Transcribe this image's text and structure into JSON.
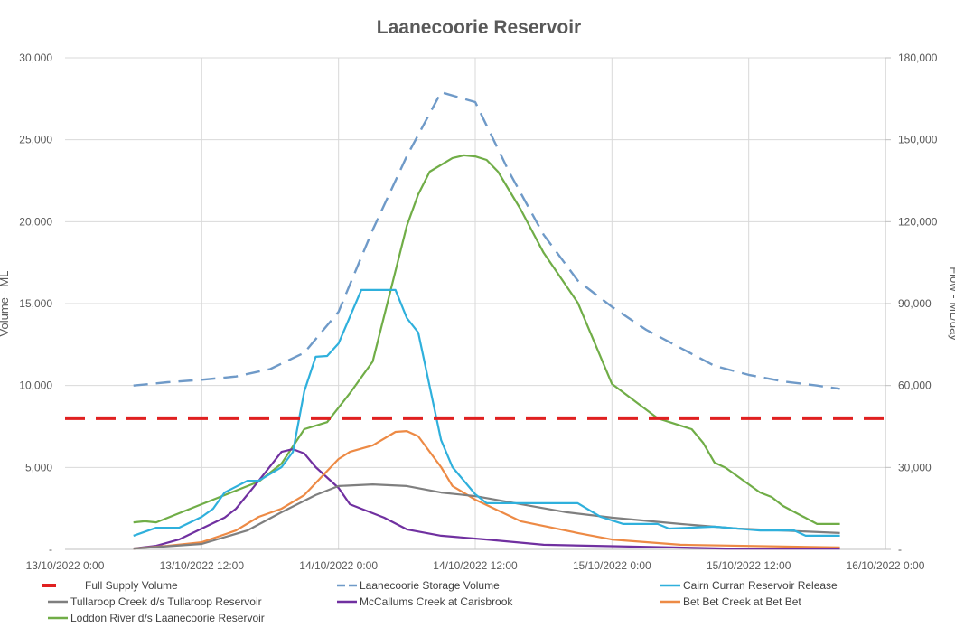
{
  "chart_data": {
    "type": "line",
    "title": "Laanecoorie Reservoir",
    "ylabel": "Volume - ML",
    "y2label": "Flow - ML/day",
    "ylim": [
      0,
      30000
    ],
    "y2lim": [
      0,
      180000
    ],
    "yticks": [
      "-",
      "5,000",
      "10,000",
      "15,000",
      "20,000",
      "25,000",
      "30,000"
    ],
    "y2ticks": [
      "-",
      "30,000",
      "60,000",
      "90,000",
      "120,000",
      "150,000",
      "180,000"
    ],
    "xlim": [
      "2022-10-13 00:00",
      "2022-10-16 00:00"
    ],
    "xticks": [
      "13/10/2022 0:00",
      "13/10/2022 12:00",
      "14/10/2022 0:00",
      "14/10/2022 12:00",
      "15/10/2022 0:00",
      "15/10/2022 12:00",
      "16/10/2022 0:00"
    ],
    "grid": true,
    "legend_position": "bottom",
    "series": [
      {
        "name": "Full Supply Volume",
        "axis": "left",
        "color": "#e02020",
        "dash": "long",
        "x": [
          "2022-10-13 00:00",
          "2022-10-16 00:00"
        ],
        "y": [
          8000,
          8000
        ]
      },
      {
        "name": "Laanecoorie Storage Volume",
        "axis": "left",
        "color": "#6f9ac8",
        "dash": "medium",
        "x": [
          "2022-10-13 06:00",
          "2022-10-13 09:00",
          "2022-10-13 12:00",
          "2022-10-13 15:00",
          "2022-10-13 18:00",
          "2022-10-13 21:00",
          "2022-10-14 00:00",
          "2022-10-14 03:00",
          "2022-10-14 06:00",
          "2022-10-14 09:00",
          "2022-10-14 12:00",
          "2022-10-14 15:00",
          "2022-10-14 18:00",
          "2022-10-14 21:00",
          "2022-10-15 00:00",
          "2022-10-15 03:00",
          "2022-10-15 06:00",
          "2022-10-15 09:00",
          "2022-10-15 12:00",
          "2022-10-15 15:00",
          "2022-10-15 18:00",
          "2022-10-15 20:00"
        ],
        "y": [
          10000,
          10200,
          10350,
          10550,
          11000,
          12000,
          14500,
          19500,
          24000,
          27900,
          27300,
          23000,
          19200,
          16400,
          14800,
          13400,
          12300,
          11200,
          10650,
          10250,
          10000,
          9800
        ]
      },
      {
        "name": "Cairn Curran Reservoir Release",
        "axis": "right",
        "color": "#2fb0dc",
        "dash": "none",
        "x": [
          "2022-10-13 06:00",
          "2022-10-13 08:00",
          "2022-10-13 10:00",
          "2022-10-13 12:00",
          "2022-10-13 13:00",
          "2022-10-13 14:00",
          "2022-10-13 16:00",
          "2022-10-13 17:00",
          "2022-10-13 19:00",
          "2022-10-13 20:00",
          "2022-10-13 21:00",
          "2022-10-13 22:00",
          "2022-10-13 23:00",
          "2022-10-14 00:00",
          "2022-10-14 02:00",
          "2022-10-14 05:00",
          "2022-10-14 06:00",
          "2022-10-14 07:00",
          "2022-10-14 09:00",
          "2022-10-14 10:00",
          "2022-10-14 12:00",
          "2022-10-14 13:00",
          "2022-10-14 21:00",
          "2022-10-14 23:00",
          "2022-10-15 01:00",
          "2022-10-15 04:00",
          "2022-10-15 05:00",
          "2022-10-15 09:00",
          "2022-10-15 13:00",
          "2022-10-15 16:00",
          "2022-10-15 17:00",
          "2022-10-15 20:00"
        ],
        "y": [
          5000,
          7900,
          7900,
          11900,
          14900,
          20800,
          25100,
          25100,
          30100,
          35700,
          57900,
          70500,
          70800,
          75400,
          95000,
          95000,
          84700,
          79400,
          40000,
          30100,
          20200,
          16900,
          16900,
          11900,
          9300,
          9300,
          7600,
          8300,
          6900,
          6900,
          5000,
          5000
        ]
      },
      {
        "name": "Tullaroop Creek d/s Tullaroop Reservoir",
        "axis": "right",
        "color": "#7f7f7f",
        "dash": "none",
        "x": [
          "2022-10-13 06:00",
          "2022-10-13 12:00",
          "2022-10-13 16:00",
          "2022-10-13 19:00",
          "2022-10-13 22:00",
          "2022-10-14 00:00",
          "2022-10-14 03:00",
          "2022-10-14 06:00",
          "2022-10-14 09:00",
          "2022-10-14 12:00",
          "2022-10-14 20:00",
          "2022-10-15 00:00",
          "2022-10-15 06:00",
          "2022-10-15 11:00",
          "2022-10-15 20:00"
        ],
        "y": [
          300,
          2000,
          6900,
          13600,
          19900,
          23200,
          23800,
          23200,
          20800,
          19500,
          13600,
          11600,
          9300,
          7600,
          6000
        ]
      },
      {
        "name": "McCallums Creek at Carisbrook",
        "axis": "right",
        "color": "#7030a0",
        "dash": "none",
        "x": [
          "2022-10-13 06:00",
          "2022-10-13 08:00",
          "2022-10-13 10:00",
          "2022-10-13 12:00",
          "2022-10-13 14:00",
          "2022-10-13 15:00",
          "2022-10-13 17:00",
          "2022-10-13 19:00",
          "2022-10-13 20:00",
          "2022-10-13 21:00",
          "2022-10-13 22:00",
          "2022-10-14 00:00",
          "2022-10-14 01:00",
          "2022-10-14 04:00",
          "2022-10-14 06:00",
          "2022-10-14 09:00",
          "2022-10-14 13:00",
          "2022-10-14 18:00",
          "2022-10-15 02:00",
          "2022-10-15 10:00",
          "2022-10-15 20:00"
        ],
        "y": [
          300,
          1300,
          3600,
          7600,
          11600,
          14900,
          25100,
          35700,
          36700,
          35100,
          30100,
          22500,
          16500,
          11600,
          7300,
          5000,
          3600,
          1700,
          1000,
          300,
          300
        ]
      },
      {
        "name": "Bet Bet Creek at Bet Bet",
        "axis": "right",
        "color": "#ed8a45",
        "dash": "none",
        "x": [
          "2022-10-13 06:00",
          "2022-10-13 09:00",
          "2022-10-13 12:00",
          "2022-10-13 15:00",
          "2022-10-13 17:00",
          "2022-10-13 19:00",
          "2022-10-13 21:00",
          "2022-10-14 00:00",
          "2022-10-14 01:00",
          "2022-10-14 03:00",
          "2022-10-14 05:00",
          "2022-10-14 06:00",
          "2022-10-14 07:00",
          "2022-10-14 09:00",
          "2022-10-14 10:00",
          "2022-10-14 12:00",
          "2022-10-14 16:00",
          "2022-10-14 21:00",
          "2022-10-15 00:00",
          "2022-10-15 06:00",
          "2022-10-15 20:00"
        ],
        "y": [
          300,
          1300,
          2600,
          6900,
          11900,
          14900,
          19900,
          33100,
          35700,
          38100,
          43000,
          43300,
          41400,
          30100,
          23200,
          18200,
          10300,
          6000,
          3600,
          1700,
          700
        ]
      },
      {
        "name": "Loddon River d/s Laanecoorie Reservoir",
        "axis": "right",
        "color": "#70ad47",
        "dash": "none",
        "x": [
          "2022-10-13 06:00",
          "2022-10-13 07:00",
          "2022-10-13 08:00",
          "2022-10-13 11:00",
          "2022-10-13 13:00",
          "2022-10-13 17:00",
          "2022-10-13 19:00",
          "2022-10-13 21:00",
          "2022-10-13 23:00",
          "2022-10-14 01:00",
          "2022-10-14 03:00",
          "2022-10-14 05:00",
          "2022-10-14 06:00",
          "2022-10-14 07:00",
          "2022-10-14 08:00",
          "2022-10-14 10:00",
          "2022-10-14 11:00",
          "2022-10-14 12:00",
          "2022-10-14 13:00",
          "2022-10-14 14:00",
          "2022-10-14 16:00",
          "2022-10-14 18:00",
          "2022-10-14 21:00",
          "2022-10-15 00:00",
          "2022-10-15 04:00",
          "2022-10-15 07:00",
          "2022-10-15 08:00",
          "2022-10-15 09:00",
          "2022-10-15 10:00",
          "2022-10-15 13:00",
          "2022-10-15 14:00",
          "2022-10-15 15:00",
          "2022-10-15 18:00",
          "2022-10-15 20:00"
        ],
        "y": [
          9900,
          10300,
          9900,
          14900,
          18200,
          24800,
          31400,
          44000,
          46600,
          57200,
          68800,
          101900,
          118500,
          130000,
          138300,
          143300,
          144300,
          143900,
          142600,
          138300,
          124400,
          108600,
          90300,
          60600,
          48000,
          44000,
          39000,
          31800,
          29800,
          20800,
          19200,
          15900,
          9300,
          9300
        ]
      }
    ]
  }
}
